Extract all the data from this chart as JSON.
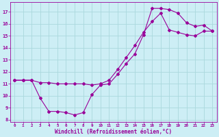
{
  "xlabel": "Windchill (Refroidissement éolien,°C)",
  "bg_color": "#cdeef5",
  "line_color": "#990099",
  "grid_color": "#aad8dd",
  "xlim": [
    -0.5,
    23.5
  ],
  "ylim": [
    7.8,
    17.8
  ],
  "yticks": [
    8,
    9,
    10,
    11,
    12,
    13,
    14,
    15,
    16,
    17
  ],
  "xticks": [
    0,
    1,
    2,
    3,
    4,
    5,
    6,
    7,
    8,
    9,
    10,
    11,
    12,
    13,
    14,
    15,
    16,
    17,
    18,
    19,
    20,
    21,
    22,
    23
  ],
  "line1_x": [
    0,
    1,
    2,
    3,
    4,
    5,
    6,
    7,
    8,
    9,
    10,
    11,
    12,
    13,
    14,
    15,
    16,
    17,
    18,
    19,
    20,
    21,
    22,
    23
  ],
  "line1_y": [
    11.3,
    11.3,
    11.3,
    9.8,
    8.7,
    8.7,
    8.6,
    8.4,
    8.6,
    10.1,
    10.9,
    11.0,
    11.8,
    12.7,
    13.5,
    15.1,
    17.3,
    17.3,
    17.2,
    16.9,
    16.1,
    15.8,
    15.9,
    15.4
  ],
  "line2_x": [
    0,
    1,
    2,
    3,
    4,
    5,
    6,
    7,
    8,
    9,
    10,
    11,
    12,
    13,
    14,
    15,
    16,
    17,
    18,
    19,
    20,
    21,
    22,
    23
  ],
  "line2_y": [
    11.3,
    11.3,
    11.3,
    11.1,
    11.1,
    11.0,
    11.0,
    11.0,
    11.0,
    10.9,
    11.0,
    11.3,
    12.2,
    13.2,
    14.2,
    15.3,
    16.2,
    16.9,
    15.5,
    15.3,
    15.1,
    15.0,
    15.4,
    15.4
  ]
}
